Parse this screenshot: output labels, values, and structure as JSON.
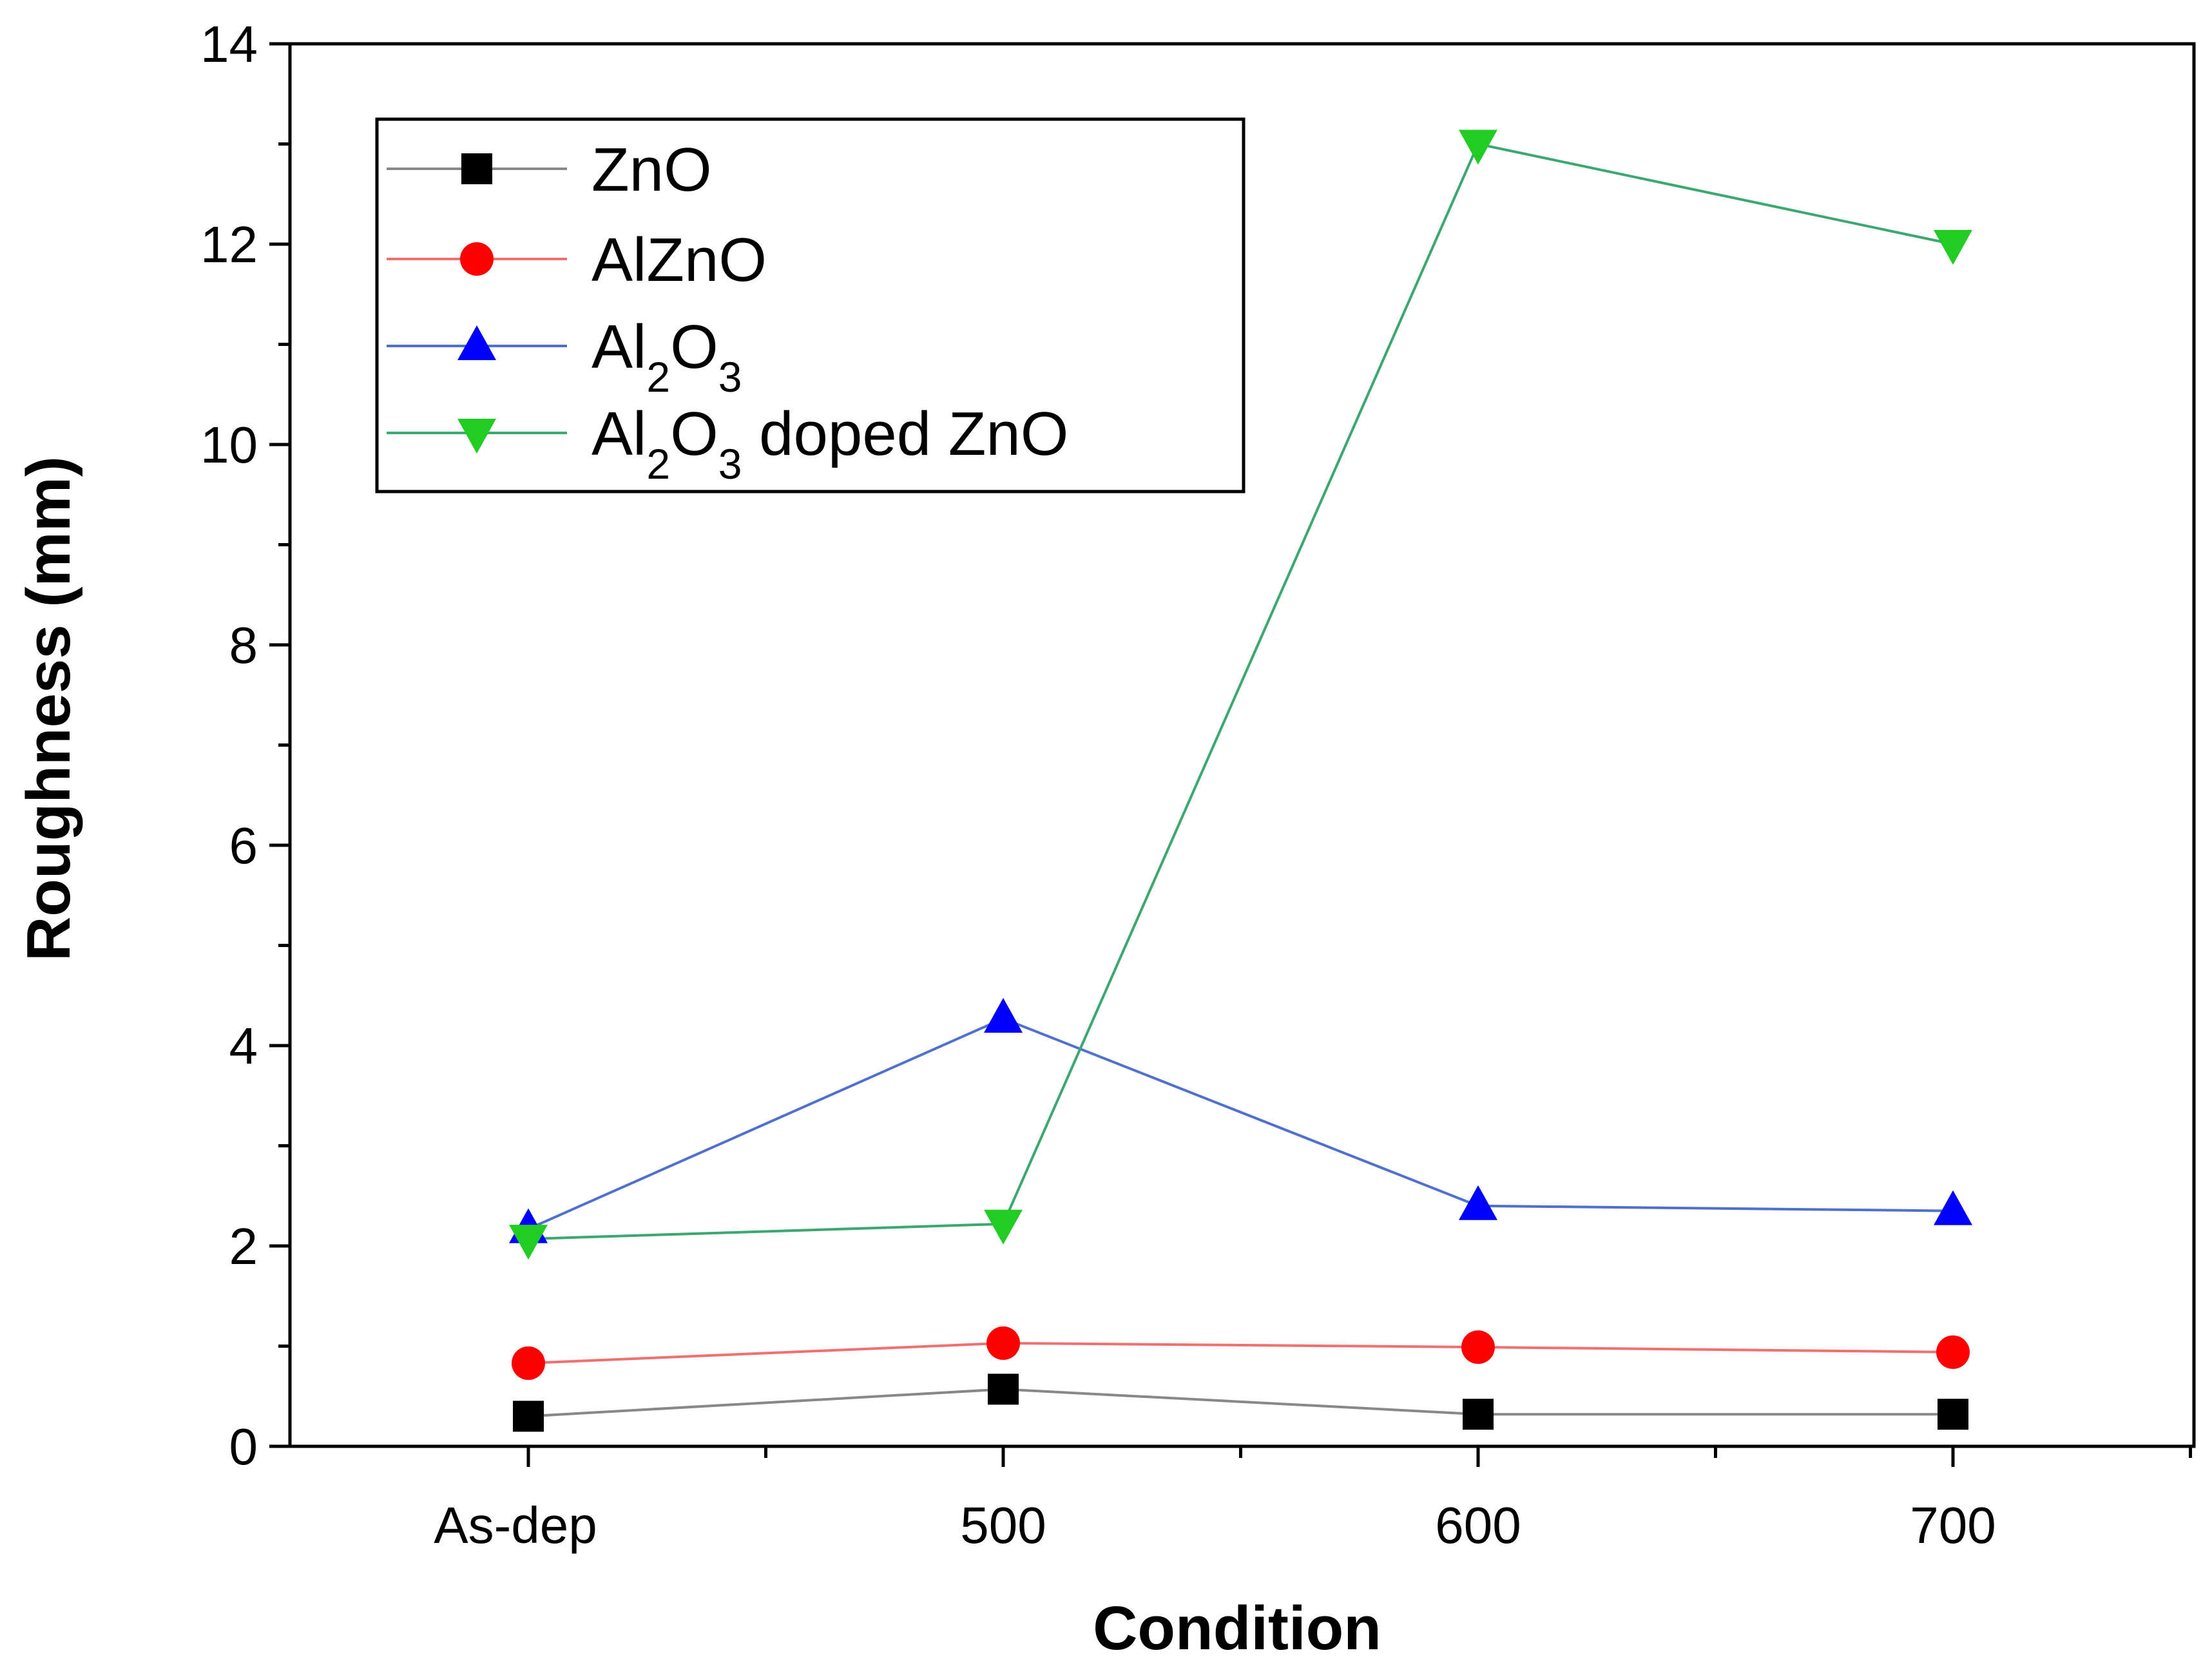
{
  "chart_data": {
    "type": "line",
    "title": "",
    "xlabel": "Condition",
    "ylabel": "Roughness (mm)",
    "categories": [
      "As-dep",
      "500",
      "600",
      "700"
    ],
    "ylim": [
      0,
      14
    ],
    "yticks": [
      0,
      2,
      4,
      6,
      8,
      10,
      12,
      14
    ],
    "grid": false,
    "legend_position": "top-left",
    "series": [
      {
        "name": "ZnO",
        "label_parts": [
          "ZnO"
        ],
        "marker": "square",
        "color": "#000000",
        "line_color": "#888888",
        "values": [
          0.3,
          0.57,
          0.32,
          0.32
        ]
      },
      {
        "name": "AlZnO",
        "label_parts": [
          "AlZnO"
        ],
        "marker": "circle",
        "color": "#ff0000",
        "line_color": "#f07070",
        "values": [
          0.83,
          1.03,
          0.99,
          0.94
        ]
      },
      {
        "name": "Al2O3",
        "label_parts": [
          "Al",
          "2",
          "O",
          "3"
        ],
        "marker": "triangle-up",
        "color": "#0000ff",
        "line_color": "#5070d0",
        "values": [
          2.17,
          4.27,
          2.4,
          2.35
        ]
      },
      {
        "name": "Al2O3 doped ZnO",
        "label_parts": [
          "Al",
          "2",
          "O",
          "3",
          " doped ZnO"
        ],
        "marker": "triangle-down",
        "color": "#22cc22",
        "line_color": "#3aa870",
        "values": [
          2.07,
          2.22,
          13.0,
          12.0
        ]
      }
    ]
  }
}
